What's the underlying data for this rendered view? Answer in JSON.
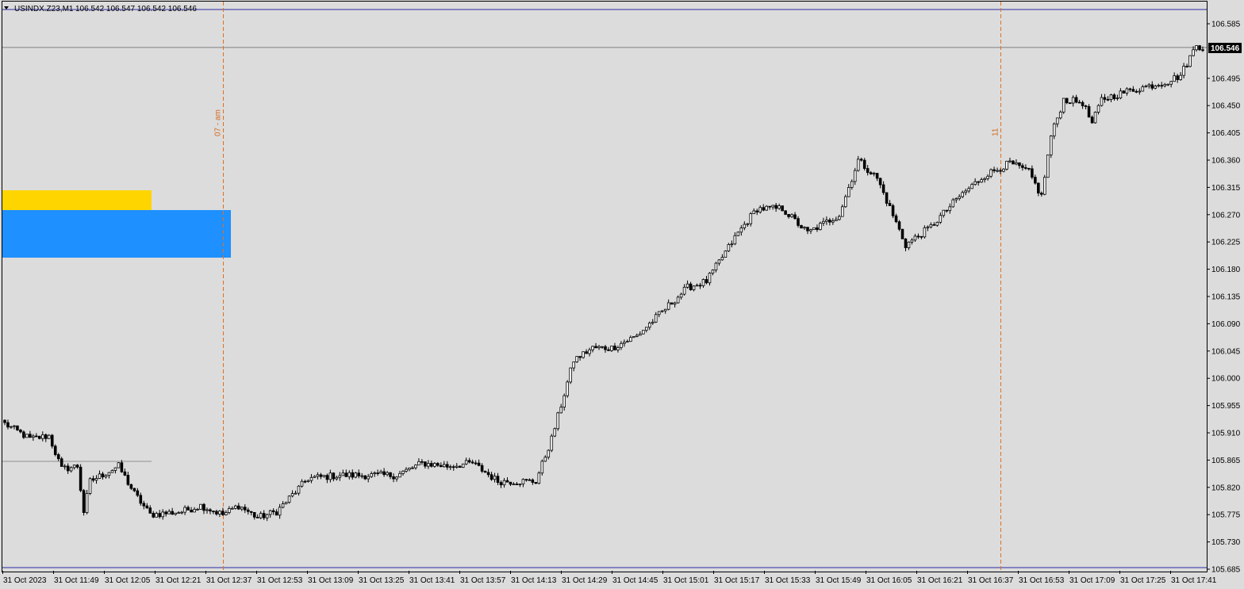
{
  "header": {
    "menu_icon": "triangle-down-icon",
    "symbol": "USINDX.Z23,M1",
    "ohlc": "106.542 106.547 106.542 106.546"
  },
  "colors": {
    "background": "#dcdcdc",
    "candle": "#000000",
    "frame_line": "#2a2aa8",
    "session_line": "#e07020",
    "yellow_box": "#ffd500",
    "blue_box": "#1e90ff",
    "price_tag_bg": "#000000"
  },
  "current_price": "106.546",
  "vertical_markers": [
    {
      "label": "07 - am",
      "time_index": 69
    },
    {
      "label": "11",
      "time_index": 315
    }
  ],
  "chart_data": {
    "type": "candlestick",
    "title": "",
    "xlabel": "",
    "ylabel": "",
    "ylim": [
      105.685,
      106.6
    ],
    "y_ticks": [
      "106.585",
      "106.495",
      "106.450",
      "106.405",
      "106.360",
      "106.315",
      "106.270",
      "106.225",
      "106.180",
      "106.135",
      "106.090",
      "106.045",
      "106.000",
      "105.955",
      "105.910",
      "105.865",
      "105.820",
      "105.775",
      "105.730",
      "105.685"
    ],
    "x_ticks": [
      "31 Oct 2023",
      "31 Oct 11:49",
      "31 Oct 12:05",
      "31 Oct 12:21",
      "31 Oct 12:37",
      "31 Oct 12:53",
      "31 Oct 13:09",
      "31 Oct 13:25",
      "31 Oct 13:41",
      "31 Oct 13:57",
      "31 Oct 14:13",
      "31 Oct 14:29",
      "31 Oct 14:45",
      "31 Oct 15:01",
      "31 Oct 15:17",
      "31 Oct 15:33",
      "31 Oct 15:49",
      "31 Oct 16:05",
      "31 Oct 16:21",
      "31 Oct 16:37",
      "31 Oct 16:53",
      "31 Oct 17:09",
      "31 Oct 17:25",
      "31 Oct 17:41"
    ],
    "candle_count": 380,
    "anchors": [
      [
        0,
        105.925
      ],
      [
        8,
        105.9
      ],
      [
        14,
        105.905
      ],
      [
        18,
        105.85
      ],
      [
        23,
        105.855
      ],
      [
        25,
        105.78
      ],
      [
        27,
        105.83
      ],
      [
        36,
        105.855
      ],
      [
        41,
        105.81
      ],
      [
        46,
        105.775
      ],
      [
        56,
        105.78
      ],
      [
        62,
        105.79
      ],
      [
        69,
        105.775
      ],
      [
        74,
        105.79
      ],
      [
        80,
        105.77
      ],
      [
        86,
        105.78
      ],
      [
        96,
        105.835
      ],
      [
        106,
        105.84
      ],
      [
        116,
        105.84
      ],
      [
        124,
        105.84
      ],
      [
        132,
        105.86
      ],
      [
        140,
        105.855
      ],
      [
        148,
        105.86
      ],
      [
        156,
        105.83
      ],
      [
        168,
        105.83
      ],
      [
        173,
        105.9
      ],
      [
        180,
        106.03
      ],
      [
        186,
        106.05
      ],
      [
        192,
        106.05
      ],
      [
        200,
        106.07
      ],
      [
        208,
        106.11
      ],
      [
        216,
        106.15
      ],
      [
        222,
        106.16
      ],
      [
        232,
        106.24
      ],
      [
        238,
        106.28
      ],
      [
        246,
        106.28
      ],
      [
        254,
        106.24
      ],
      [
        264,
        106.27
      ],
      [
        270,
        106.36
      ],
      [
        276,
        106.33
      ],
      [
        285,
        106.22
      ],
      [
        293,
        106.25
      ],
      [
        302,
        106.3
      ],
      [
        310,
        106.335
      ],
      [
        318,
        106.355
      ],
      [
        324,
        106.34
      ],
      [
        328,
        106.3
      ],
      [
        331,
        106.4
      ],
      [
        335,
        106.46
      ],
      [
        341,
        106.455
      ],
      [
        344,
        106.42
      ],
      [
        347,
        106.46
      ],
      [
        356,
        106.475
      ],
      [
        368,
        106.49
      ],
      [
        372,
        106.5
      ],
      [
        377,
        106.55
      ],
      [
        379,
        106.546
      ]
    ],
    "session_range": {
      "high_label": "106.585",
      "low_label": "105.685"
    }
  }
}
